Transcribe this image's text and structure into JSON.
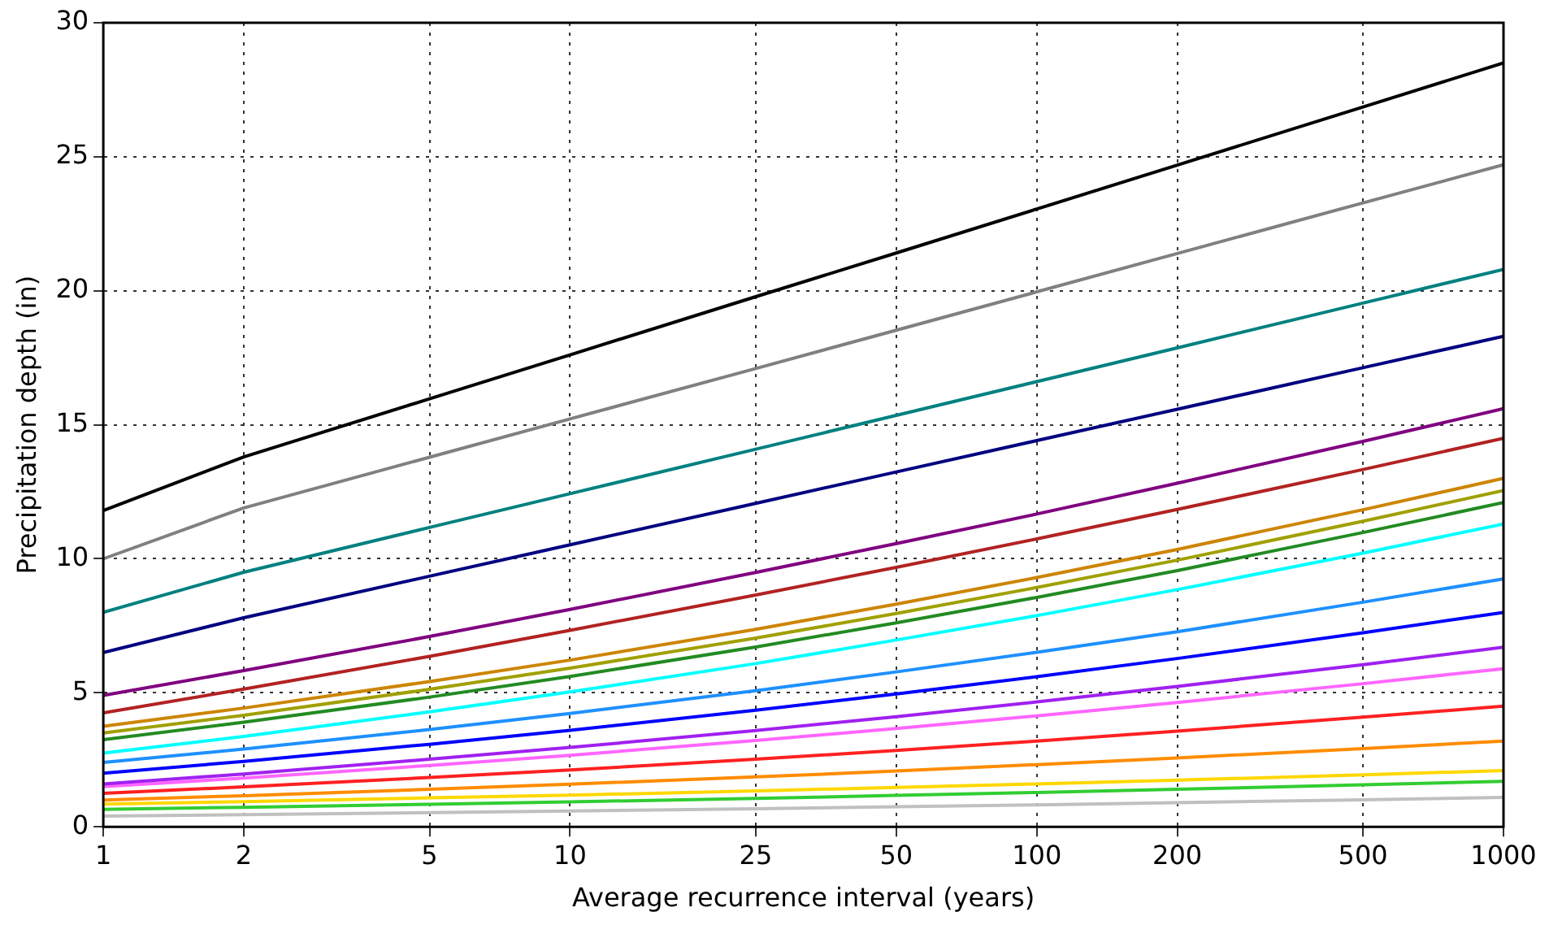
{
  "chart_data": {
    "type": "line",
    "xlabel": "Average recurrence interval (years)",
    "ylabel": "Precipitation depth (in)",
    "x": [
      1,
      2,
      5,
      10,
      25,
      50,
      100,
      200,
      500,
      1000
    ],
    "log": "x",
    "grid": true,
    "marker": "none",
    "line_style": "solid",
    "xlim": [
      1,
      1000
    ],
    "xticks": [
      1,
      2,
      5,
      10,
      25,
      50,
      100,
      200,
      500,
      1000
    ],
    "ylim": [
      0,
      30
    ],
    "yticks": [
      0,
      5,
      10,
      15,
      20,
      25,
      30
    ],
    "series": [
      {
        "color": "#000000",
        "values": [
          11.8,
          13.8,
          15.97,
          17.61,
          19.78,
          21.41,
          23.05,
          24.69,
          26.86,
          28.5
        ]
      },
      {
        "color": "#808080",
        "values": [
          10.0,
          11.9,
          13.79,
          15.22,
          17.1,
          18.53,
          19.96,
          21.39,
          23.28,
          24.7
        ]
      },
      {
        "color": "#008080",
        "values": [
          8.0,
          9.5,
          11.17,
          12.43,
          14.09,
          15.35,
          16.61,
          17.87,
          19.54,
          20.8
        ]
      },
      {
        "color": "#000080",
        "values": [
          6.5,
          7.8,
          9.35,
          10.52,
          12.07,
          13.24,
          14.41,
          15.58,
          17.13,
          18.3
        ]
      },
      {
        "color": "#800080",
        "values": [
          4.9,
          5.83,
          7.1,
          8.11,
          9.49,
          10.57,
          11.67,
          12.82,
          14.38,
          15.6
        ]
      },
      {
        "color": "#b22222",
        "values": [
          4.25,
          5.14,
          6.36,
          7.33,
          8.65,
          9.68,
          10.74,
          11.84,
          13.33,
          14.5
        ]
      },
      {
        "color": "#cd8500",
        "values": [
          3.75,
          4.43,
          5.42,
          6.22,
          7.37,
          8.31,
          9.3,
          10.35,
          11.83,
          13.0
        ]
      },
      {
        "color": "#a0a000",
        "values": [
          3.5,
          4.16,
          5.13,
          5.92,
          7.04,
          7.96,
          8.93,
          9.95,
          11.4,
          12.55
        ]
      },
      {
        "color": "#228b22",
        "values": [
          3.25,
          3.9,
          4.84,
          5.61,
          6.71,
          7.61,
          8.56,
          9.56,
          10.98,
          12.1
        ]
      },
      {
        "color": "#00ffff",
        "values": [
          2.75,
          3.37,
          4.29,
          5.03,
          6.09,
          6.97,
          7.88,
          8.85,
          10.21,
          11.3
        ]
      },
      {
        "color": "#1e90ff",
        "values": [
          2.4,
          2.9,
          3.63,
          4.23,
          5.08,
          5.78,
          6.51,
          7.28,
          8.38,
          9.25
        ]
      },
      {
        "color": "#0000ff",
        "values": [
          2.0,
          2.44,
          3.08,
          3.6,
          4.35,
          4.96,
          5.6,
          6.28,
          7.24,
          8.0
        ]
      },
      {
        "color": "#a020f0",
        "values": [
          1.6,
          1.97,
          2.52,
          2.96,
          3.59,
          4.11,
          4.66,
          5.24,
          6.05,
          6.7
        ]
      },
      {
        "color": "#ff66ff",
        "values": [
          1.5,
          1.82,
          2.29,
          2.67,
          3.22,
          3.67,
          4.14,
          4.64,
          5.34,
          5.9
        ]
      },
      {
        "color": "#ff2020",
        "values": [
          1.25,
          1.49,
          1.84,
          2.12,
          2.52,
          2.85,
          3.2,
          3.57,
          4.09,
          4.5
        ]
      },
      {
        "color": "#ff8c00",
        "values": [
          1.0,
          1.16,
          1.4,
          1.59,
          1.86,
          2.08,
          2.32,
          2.57,
          2.92,
          3.2
        ]
      },
      {
        "color": "#ffd700",
        "values": [
          0.85,
          0.94,
          1.08,
          1.18,
          1.34,
          1.47,
          1.6,
          1.74,
          1.94,
          2.1
        ]
      },
      {
        "color": "#32cd32",
        "values": [
          0.65,
          0.73,
          0.84,
          0.93,
          1.06,
          1.17,
          1.28,
          1.4,
          1.57,
          1.7
        ]
      },
      {
        "color": "#c0c0c0",
        "values": [
          0.4,
          0.45,
          0.53,
          0.59,
          0.67,
          0.75,
          0.82,
          0.9,
          1.01,
          1.1
        ]
      }
    ]
  }
}
